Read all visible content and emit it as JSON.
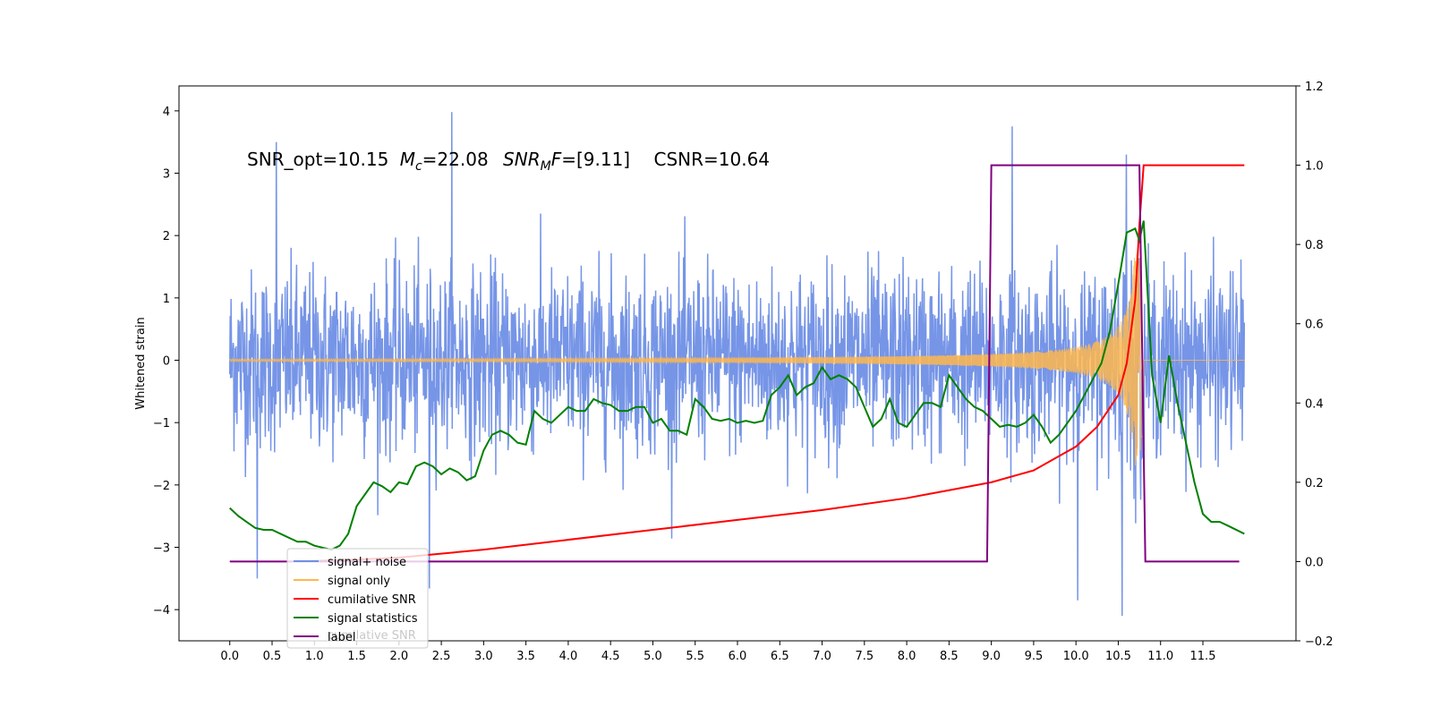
{
  "chart_data": {
    "type": "line",
    "annotation": {
      "snr_opt": "SNR_opt=10.15",
      "mc_symbol": "M",
      "mc_sub": "c",
      "mc_value": "=22.08",
      "snrmf_symbol": "SNR",
      "snrmf_sub": "M",
      "snrmf_tail": "F",
      "snrmf_value": "=[9.11]",
      "csnr": "CSNR=10.64"
    },
    "ylabel": "Whitened strain",
    "xlim": [
      -0.6,
      12.6
    ],
    "ylim": [
      -4.5,
      4.4
    ],
    "y2lim": [
      -0.2,
      1.2
    ],
    "x_ticks": [
      0.0,
      0.5,
      1.0,
      1.5,
      2.0,
      2.5,
      3.0,
      3.5,
      4.0,
      4.5,
      5.0,
      5.5,
      6.0,
      6.5,
      7.0,
      7.5,
      8.0,
      8.5,
      9.0,
      9.5,
      10.0,
      10.5,
      11.0,
      11.5
    ],
    "x_tick_labels": [
      "0.0",
      "0.5",
      "1.0",
      "1.5",
      "2.0",
      "2.5",
      "3.0",
      "3.5",
      "4.0",
      "4.5",
      "5.0",
      "5.5",
      "6.0",
      "6.5",
      "7.0",
      "7.5",
      "8.0",
      "8.5",
      "9.0",
      "9.5",
      "10.0",
      "10.5",
      "11.0",
      "11.5"
    ],
    "y_ticks": [
      -4,
      -3,
      -2,
      -1,
      0,
      1,
      2,
      3,
      4
    ],
    "y_tick_labels": [
      "−4",
      "−3",
      "−2",
      "−1",
      "0",
      "1",
      "2",
      "3",
      "4"
    ],
    "y2_ticks": [
      -0.2,
      0.0,
      0.2,
      0.4,
      0.6,
      0.8,
      1.0,
      1.2
    ],
    "y2_tick_labels": [
      "−0.2",
      "0.0",
      "0.2",
      "0.4",
      "0.6",
      "0.8",
      "1.0",
      "1.2"
    ],
    "legend": {
      "position": "lower-left",
      "entries": [
        {
          "label": "signal+ noise",
          "color": "#6f8fe6"
        },
        {
          "label": "signal only",
          "color": "#ffb74d"
        },
        {
          "label": "cumilative SNR",
          "color": "#ff0000"
        },
        {
          "label": "signal statistics",
          "color": "#008000"
        },
        {
          "label": "label",
          "color": "#800080"
        }
      ],
      "overlap_text": "cumilative SNR"
    },
    "series": [
      {
        "name": "signal+ noise",
        "axis": "left",
        "color": "#6f8fe6",
        "kind": "noise",
        "x_start": 0.0,
        "x_end": 11.99,
        "typical_band": [
          -1.6,
          1.6
        ],
        "max_spikes": [
          3.98,
          3.75,
          3.5,
          3.3
        ],
        "min_spikes": [
          -4.1,
          -3.85,
          -3.66,
          -3.5
        ]
      },
      {
        "name": "signal only",
        "axis": "left",
        "color": "#ffb74d",
        "kind": "chirp",
        "x_start": 0.0,
        "x_end": 11.99,
        "merger_x": 10.75,
        "peak_amplitude": 1.7
      },
      {
        "name": "cumilative SNR",
        "axis": "right",
        "color": "#ff0000",
        "x": [
          0.8,
          1.5,
          2.0,
          3.0,
          4.0,
          5.0,
          6.0,
          7.0,
          8.0,
          8.5,
          9.0,
          9.5,
          10.0,
          10.25,
          10.5,
          10.6,
          10.7,
          10.75,
          10.8,
          11.0,
          11.5,
          11.99
        ],
        "y": [
          0.0,
          0.005,
          0.01,
          0.03,
          0.055,
          0.08,
          0.105,
          0.13,
          0.16,
          0.18,
          0.2,
          0.23,
          0.29,
          0.34,
          0.42,
          0.5,
          0.66,
          0.85,
          1.0,
          1.0,
          1.0,
          1.0
        ]
      },
      {
        "name": "signal statistics",
        "axis": "right",
        "color": "#008000",
        "x": [
          0.0,
          0.1,
          0.2,
          0.3,
          0.4,
          0.5,
          0.6,
          0.7,
          0.8,
          0.9,
          1.0,
          1.1,
          1.2,
          1.3,
          1.4,
          1.5,
          1.6,
          1.7,
          1.8,
          1.9,
          2.0,
          2.1,
          2.2,
          2.3,
          2.4,
          2.5,
          2.6,
          2.7,
          2.8,
          2.9,
          3.0,
          3.1,
          3.2,
          3.3,
          3.4,
          3.5,
          3.6,
          3.7,
          3.8,
          3.9,
          4.0,
          4.1,
          4.2,
          4.3,
          4.4,
          4.5,
          4.6,
          4.7,
          4.8,
          4.9,
          5.0,
          5.1,
          5.2,
          5.3,
          5.4,
          5.5,
          5.6,
          5.7,
          5.8,
          5.9,
          6.0,
          6.1,
          6.2,
          6.3,
          6.4,
          6.5,
          6.6,
          6.7,
          6.8,
          6.9,
          7.0,
          7.1,
          7.2,
          7.3,
          7.4,
          7.5,
          7.6,
          7.7,
          7.8,
          7.9,
          8.0,
          8.1,
          8.2,
          8.3,
          8.4,
          8.5,
          8.6,
          8.7,
          8.8,
          8.9,
          9.0,
          9.1,
          9.2,
          9.3,
          9.4,
          9.5,
          9.6,
          9.7,
          9.8,
          9.9,
          10.0,
          10.1,
          10.2,
          10.3,
          10.4,
          10.5,
          10.6,
          10.7,
          10.75,
          10.8,
          10.9,
          11.0,
          11.1,
          11.2,
          11.3,
          11.4,
          11.5,
          11.6,
          11.7,
          11.8,
          11.99
        ],
        "y": [
          0.135,
          0.115,
          0.1,
          0.085,
          0.08,
          0.08,
          0.07,
          0.06,
          0.05,
          0.05,
          0.04,
          0.035,
          0.03,
          0.04,
          0.07,
          0.14,
          0.17,
          0.2,
          0.19,
          0.175,
          0.2,
          0.195,
          0.24,
          0.25,
          0.24,
          0.22,
          0.235,
          0.225,
          0.205,
          0.215,
          0.28,
          0.32,
          0.33,
          0.32,
          0.3,
          0.295,
          0.38,
          0.36,
          0.35,
          0.37,
          0.39,
          0.38,
          0.38,
          0.41,
          0.4,
          0.395,
          0.38,
          0.38,
          0.39,
          0.39,
          0.35,
          0.36,
          0.33,
          0.33,
          0.32,
          0.41,
          0.39,
          0.36,
          0.355,
          0.36,
          0.35,
          0.355,
          0.35,
          0.355,
          0.42,
          0.44,
          0.47,
          0.42,
          0.44,
          0.45,
          0.49,
          0.46,
          0.47,
          0.46,
          0.44,
          0.39,
          0.34,
          0.36,
          0.41,
          0.35,
          0.34,
          0.37,
          0.4,
          0.4,
          0.39,
          0.47,
          0.44,
          0.41,
          0.39,
          0.38,
          0.36,
          0.34,
          0.345,
          0.34,
          0.35,
          0.37,
          0.34,
          0.3,
          0.32,
          0.35,
          0.38,
          0.42,
          0.46,
          0.5,
          0.58,
          0.7,
          0.83,
          0.84,
          0.81,
          0.86,
          0.47,
          0.35,
          0.52,
          0.4,
          0.3,
          0.2,
          0.12,
          0.1,
          0.1,
          0.09,
          0.07
        ]
      },
      {
        "name": "label",
        "axis": "right",
        "color": "#800080",
        "x": [
          0.0,
          8.95,
          9.0,
          10.75,
          10.82,
          11.93
        ],
        "y": [
          0.0,
          0.0,
          1.0,
          1.0,
          0.0,
          0.0
        ]
      }
    ],
    "grid": false
  }
}
